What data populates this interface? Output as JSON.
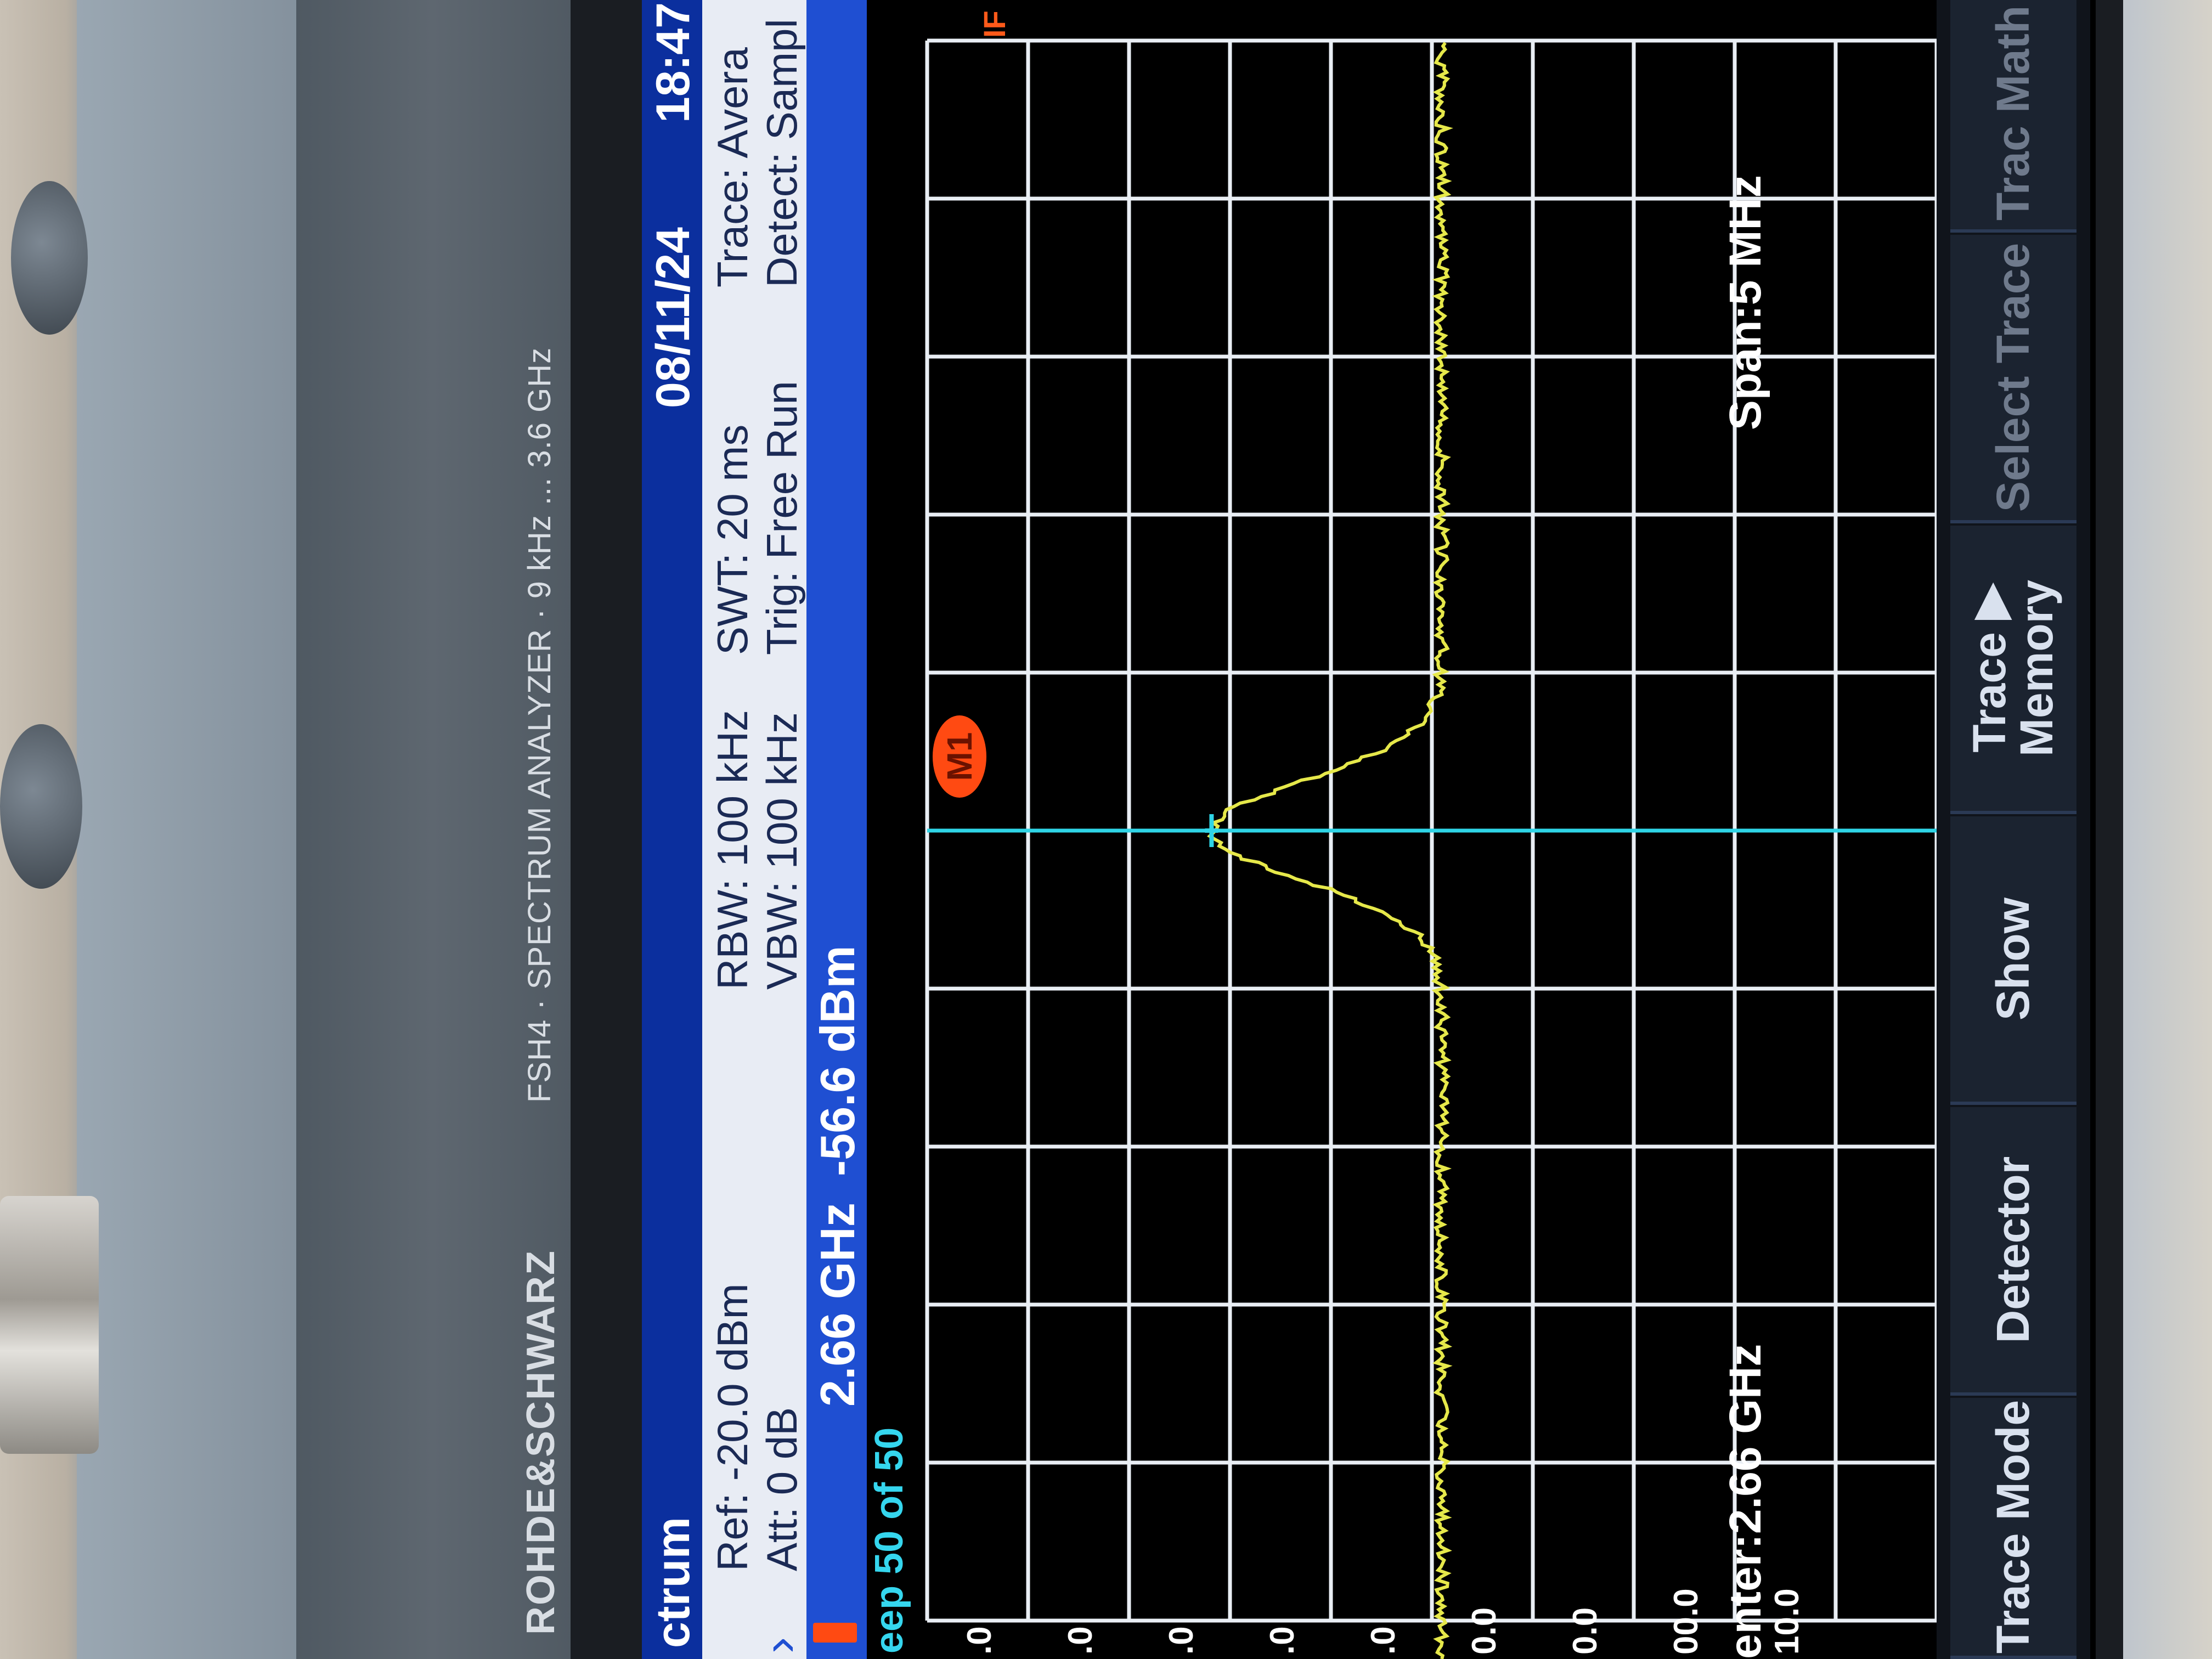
{
  "device": {
    "brand": "ROHDE&SCHWARZ",
    "model": "FSH4 · SPECTRUM ANALYZER · 9 kHz ... 3.6 GHz"
  },
  "header": {
    "mode": "ctrum",
    "date": "08/11/24",
    "time": "18:47"
  },
  "settings": {
    "ref": "Ref: -20.0 dBm",
    "att": "Att: 0 dB",
    "rbw": "RBW: 100 kHz",
    "vbw": "VBW: 100 kHz",
    "swt": "SWT: 20 ms",
    "trig": "Trig: Free Run",
    "trace": "Trace: Avera",
    "detect": "Detect: Sampl"
  },
  "marker": {
    "freq": "2.66 GHz",
    "level": "-56.6 dBm",
    "label": "M1"
  },
  "status": {
    "sweep": "eep 50 of 50",
    "ifo": "IF"
  },
  "axis": {
    "y_ticks": [
      ".0",
      ".0",
      ".0",
      ".0",
      ".0",
      "0.0",
      "0.0",
      "00.0",
      "10.0"
    ]
  },
  "footer": {
    "center": "enter:2.66 GHz",
    "span": "Span:5 MHz"
  },
  "softkeys": [
    {
      "label": "Trace Mode",
      "dim": false
    },
    {
      "label": "Detector",
      "dim": false
    },
    {
      "label": "Show",
      "dim": false
    },
    {
      "label": "Trace ▶ Memory",
      "dim": false
    },
    {
      "label": "Select Trace",
      "dim": true
    },
    {
      "label": "Trac Math",
      "dim": true
    }
  ],
  "colors": {
    "trace": "#e6e84a",
    "marker_line": "#2fd4e6",
    "marker_badge": "#ff4a12",
    "grid": "#e9eef4",
    "header_blue": "#0b2f9e",
    "accent_blue": "#1f4fd2"
  }
}
